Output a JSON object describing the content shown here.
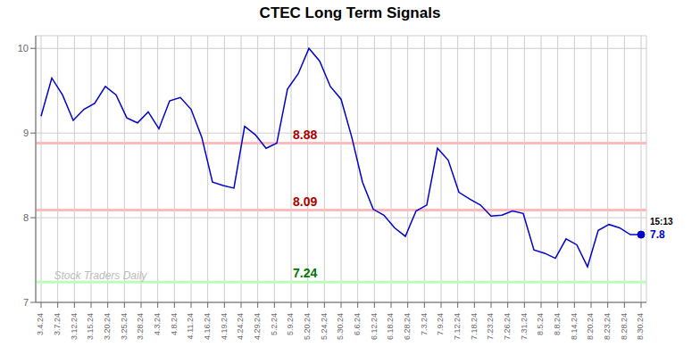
{
  "chart_data": {
    "type": "line",
    "title": "CTEC Long Term Signals",
    "x": [
      0,
      1,
      2,
      3,
      4,
      5,
      6,
      7,
      8,
      9,
      10,
      11,
      12,
      13,
      14,
      15,
      16,
      17,
      18,
      19,
      20,
      21,
      22,
      23,
      24,
      25,
      26,
      27,
      28,
      29,
      30,
      31,
      32,
      33,
      34,
      35,
      36,
      37,
      38,
      39,
      40,
      41,
      42,
      43,
      44,
      45,
      46,
      47,
      48,
      49,
      50,
      51,
      52,
      53,
      54,
      55,
      56
    ],
    "values": [
      9.2,
      9.65,
      9.45,
      9.15,
      9.28,
      9.35,
      9.55,
      9.45,
      9.18,
      9.12,
      9.25,
      9.05,
      9.38,
      9.42,
      9.28,
      8.95,
      8.42,
      8.38,
      8.35,
      9.08,
      8.98,
      8.82,
      8.88,
      9.52,
      9.7,
      10.0,
      9.85,
      9.55,
      9.4,
      8.95,
      8.42,
      8.1,
      8.03,
      7.88,
      7.78,
      8.08,
      8.15,
      8.82,
      8.68,
      8.3,
      8.22,
      8.15,
      8.02,
      8.03,
      8.08,
      8.05,
      7.62,
      7.58,
      7.52,
      7.75,
      7.68,
      7.42,
      7.85,
      7.92,
      7.88,
      7.8,
      7.8
    ],
    "color": "#0000cc",
    "xlim": [
      -0.5,
      56.5
    ],
    "xticks": [
      {
        "value": 0,
        "label": "3.4.24"
      },
      {
        "value": 1.5555555555555556,
        "label": "3.7.24"
      },
      {
        "value": 3.111111111111111,
        "label": "3.12.24"
      },
      {
        "value": 4.666666666666667,
        "label": "3.15.24"
      },
      {
        "value": 6.222222222222222,
        "label": "3.20.24"
      },
      {
        "value": 7.777777777777778,
        "label": "3.25.24"
      },
      {
        "value": 9.333333333333334,
        "label": "3.28.24"
      },
      {
        "value": 10.88888888888889,
        "label": "4.3.24"
      },
      {
        "value": 12.444444444444445,
        "label": "4.8.24"
      },
      {
        "value": 14,
        "label": "4.11.24"
      },
      {
        "value": 15.555555555555555,
        "label": "4.16.24"
      },
      {
        "value": 17.11111111111111,
        "label": "4.19.24"
      },
      {
        "value": 18.666666666666668,
        "label": "4.24.24"
      },
      {
        "value": 20.22222222222222,
        "label": "4.29.24"
      },
      {
        "value": 21.77777777777778,
        "label": "5.2.24"
      },
      {
        "value": 23.333333333333332,
        "label": "5.9.24"
      },
      {
        "value": 24.88888888888889,
        "label": "5.20.24"
      },
      {
        "value": 26.444444444444443,
        "label": "5.24.24"
      },
      {
        "value": 28,
        "label": "5.30.24"
      },
      {
        "value": 29.555555555555557,
        "label": "6.6.24"
      },
      {
        "value": 31.11111111111111,
        "label": "6.12.24"
      },
      {
        "value": 32.666666666666664,
        "label": "6.18.24"
      },
      {
        "value": 34.22222222222222,
        "label": "6.28.24"
      },
      {
        "value": 35.77777777777778,
        "label": "7.3.24"
      },
      {
        "value": 37.333333333333336,
        "label": "7.9.24"
      },
      {
        "value": 38.888888888888886,
        "label": "7.12.24"
      },
      {
        "value": 40.44444444444444,
        "label": "7.18.24"
      },
      {
        "value": 42,
        "label": "7.23.24"
      },
      {
        "value": 43.55555555555556,
        "label": "7.26.24"
      },
      {
        "value": 45.111111111111114,
        "label": "7.31.24"
      },
      {
        "value": 46.666666666666664,
        "label": "8.5.24"
      },
      {
        "value": 48.22222222222222,
        "label": "8.8.24"
      },
      {
        "value": 49.77777777777778,
        "label": "8.14.24"
      },
      {
        "value": 51.333333333333336,
        "label": "8.20.24"
      },
      {
        "value": 52.888888888888886,
        "label": "8.23.24"
      },
      {
        "value": 54.44444444444444,
        "label": "8.28.24"
      },
      {
        "value": 56,
        "label": "8.30.24"
      }
    ],
    "ylim": [
      7.0,
      10.15
    ],
    "yticks": [
      7,
      8,
      9,
      10
    ],
    "grid": true,
    "hlines": [
      {
        "value": 8.88,
        "color": "#ffbbbb",
        "label_color": "#aa0000"
      },
      {
        "value": 8.09,
        "color": "#ffbbbb",
        "label_color": "#aa0000"
      },
      {
        "value": 7.24,
        "color": "#bbffbb",
        "label_color": "#007700"
      }
    ],
    "annotations": [
      {
        "text": "15:13",
        "x": 56,
        "y": 7.8,
        "color": "#000000"
      },
      {
        "text": "7.8",
        "x": 56,
        "y": 7.8,
        "color": "#0000cc"
      },
      {
        "text": "Stock Traders Daily",
        "color": "#bbbbbb"
      }
    ]
  }
}
